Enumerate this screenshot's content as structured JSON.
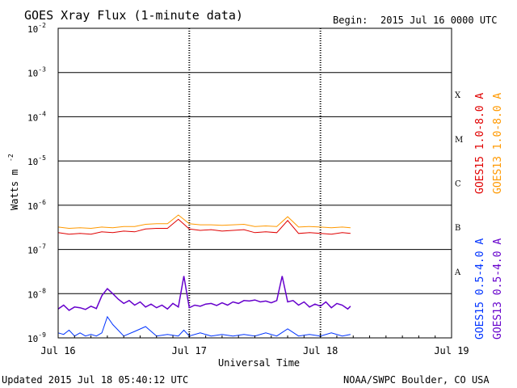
{
  "header": {
    "title": "GOES Xray Flux (1-minute data)",
    "begin_label": "Begin:",
    "begin_value": "2015 Jul 16 0000 UTC"
  },
  "footer": {
    "updated": "Updated 2015 Jul 18 05:40:12 UTC",
    "credit": "NOAA/SWPC Boulder, CO USA"
  },
  "colors": {
    "goes15_long": "#e00000",
    "goes13_long": "#ff9900",
    "goes15_short": "#0033ff",
    "goes13_short": "#6600cc"
  },
  "chart_data": {
    "type": "line",
    "title": "GOES Xray Flux (1-minute data)",
    "xlabel": "Universal Time",
    "ylabel": "Watts m",
    "ylabel_superscript": "-2",
    "y_scale": "log",
    "ylim": [
      1e-09,
      0.01
    ],
    "xlim_hours": [
      0,
      72
    ],
    "x_ticks": [
      {
        "hours": 0,
        "label": "Jul 16"
      },
      {
        "hours": 24,
        "label": "Jul 17"
      },
      {
        "hours": 48,
        "label": "Jul 18"
      },
      {
        "hours": 72,
        "label": "Jul 19"
      }
    ],
    "y_ticks": [
      {
        "value": 0.01,
        "base": "10",
        "exp": "-2"
      },
      {
        "value": 0.001,
        "base": "10",
        "exp": "-3"
      },
      {
        "value": 0.0001,
        "base": "10",
        "exp": "-4"
      },
      {
        "value": 1e-05,
        "base": "10",
        "exp": "-5"
      },
      {
        "value": 1e-06,
        "base": "10",
        "exp": "-6"
      },
      {
        "value": 1e-07,
        "base": "10",
        "exp": "-7"
      },
      {
        "value": 1e-08,
        "base": "10",
        "exp": "-8"
      },
      {
        "value": 1e-09,
        "base": "10",
        "exp": "-9"
      }
    ],
    "flare_classes": [
      {
        "label": "X",
        "value": 0.000316
      },
      {
        "label": "M",
        "value": 3.16e-05
      },
      {
        "label": "C",
        "value": 3.16e-06
      },
      {
        "label": "B",
        "value": 3.16e-07
      },
      {
        "label": "A",
        "value": 3.16e-08
      }
    ],
    "series": [
      {
        "name": "GOES15 1.0-8.0 A",
        "color": "#e00000",
        "hours": [
          0,
          2,
          4,
          6,
          8,
          10,
          12,
          14,
          16,
          18,
          20,
          22,
          24,
          26,
          28,
          30,
          32,
          34,
          36,
          38,
          40,
          42,
          44,
          46,
          48,
          50,
          52,
          53.5
        ],
        "values": [
          2.4e-07,
          2.2e-07,
          2.3e-07,
          2.2e-07,
          2.5e-07,
          2.4e-07,
          2.6e-07,
          2.5e-07,
          2.9e-07,
          3e-07,
          3e-07,
          4.8e-07,
          2.9e-07,
          2.7e-07,
          2.8e-07,
          2.6e-07,
          2.7e-07,
          2.8e-07,
          2.4e-07,
          2.5e-07,
          2.4e-07,
          4.5e-07,
          2.3e-07,
          2.4e-07,
          2.3e-07,
          2.2e-07,
          2.4e-07,
          2.3e-07
        ]
      },
      {
        "name": "GOES13 1.0-8.0 A",
        "color": "#ff9900",
        "hours": [
          0,
          2,
          4,
          6,
          8,
          10,
          12,
          14,
          16,
          18,
          20,
          22,
          24,
          26,
          28,
          30,
          32,
          34,
          36,
          38,
          40,
          42,
          44,
          46,
          48,
          50,
          52,
          53.5
        ],
        "values": [
          3.2e-07,
          3e-07,
          3.1e-07,
          3e-07,
          3.2e-07,
          3.1e-07,
          3.3e-07,
          3.3e-07,
          3.7e-07,
          3.8e-07,
          3.8e-07,
          6e-07,
          3.8e-07,
          3.6e-07,
          3.6e-07,
          3.5e-07,
          3.6e-07,
          3.7e-07,
          3.3e-07,
          3.4e-07,
          3.3e-07,
          5.5e-07,
          3.2e-07,
          3.3e-07,
          3.2e-07,
          3.1e-07,
          3.2e-07,
          3.1e-07
        ]
      },
      {
        "name": "GOES15 0.5-4.0 A",
        "color": "#0033ff",
        "hours": [
          0,
          1,
          2,
          3,
          4,
          5,
          6,
          7,
          8,
          9,
          10,
          12,
          14,
          16,
          18,
          20,
          22,
          23,
          24,
          26,
          28,
          30,
          32,
          34,
          36,
          38,
          40,
          42,
          44,
          46,
          48,
          50,
          52,
          53.5
        ],
        "values": [
          1.3e-09,
          1.2e-09,
          1.5e-09,
          1.1e-09,
          1.3e-09,
          1.1e-09,
          1.2e-09,
          1.1e-09,
          1.3e-09,
          3e-09,
          2e-09,
          1.1e-09,
          1.4e-09,
          1.8e-09,
          1.1e-09,
          1.2e-09,
          1.1e-09,
          1.5e-09,
          1.1e-09,
          1.3e-09,
          1.1e-09,
          1.2e-09,
          1.1e-09,
          1.2e-09,
          1.1e-09,
          1.3e-09,
          1.1e-09,
          1.6e-09,
          1.1e-09,
          1.2e-09,
          1.1e-09,
          1.3e-09,
          1.1e-09,
          1.2e-09
        ]
      },
      {
        "name": "GOES13 0.5-4.0 A",
        "color": "#6600cc",
        "hours": [
          0,
          1,
          2,
          3,
          4,
          5,
          6,
          7,
          8,
          9,
          10,
          11,
          12,
          13,
          14,
          15,
          16,
          17,
          18,
          19,
          20,
          21,
          22,
          23,
          24,
          25,
          26,
          27,
          28,
          29,
          30,
          31,
          32,
          33,
          34,
          35,
          36,
          37,
          38,
          39,
          40,
          41,
          42,
          43,
          44,
          45,
          46,
          47,
          48,
          49,
          50,
          51,
          52,
          53,
          53.5
        ],
        "values": [
          4.5e-09,
          5.5e-09,
          4.2e-09,
          5e-09,
          4.8e-09,
          4.4e-09,
          5.2e-09,
          4.6e-09,
          9e-09,
          1.3e-08,
          1e-08,
          7.5e-09,
          6e-09,
          7e-09,
          5.5e-09,
          6.5e-09,
          5e-09,
          5.8e-09,
          4.8e-09,
          5.5e-09,
          4.5e-09,
          6e-09,
          5e-09,
          2.5e-08,
          4.8e-09,
          5.5e-09,
          5.2e-09,
          5.8e-09,
          6e-09,
          5.4e-09,
          6.2e-09,
          5.5e-09,
          6.5e-09,
          6e-09,
          7e-09,
          6.8e-09,
          7.2e-09,
          6.5e-09,
          6.8e-09,
          6.2e-09,
          7e-09,
          2.5e-08,
          6.5e-09,
          7e-09,
          5.5e-09,
          6.5e-09,
          5e-09,
          5.8e-09,
          5.2e-09,
          6.5e-09,
          4.8e-09,
          6e-09,
          5.5e-09,
          4.5e-09,
          5.2e-09
        ]
      }
    ]
  }
}
